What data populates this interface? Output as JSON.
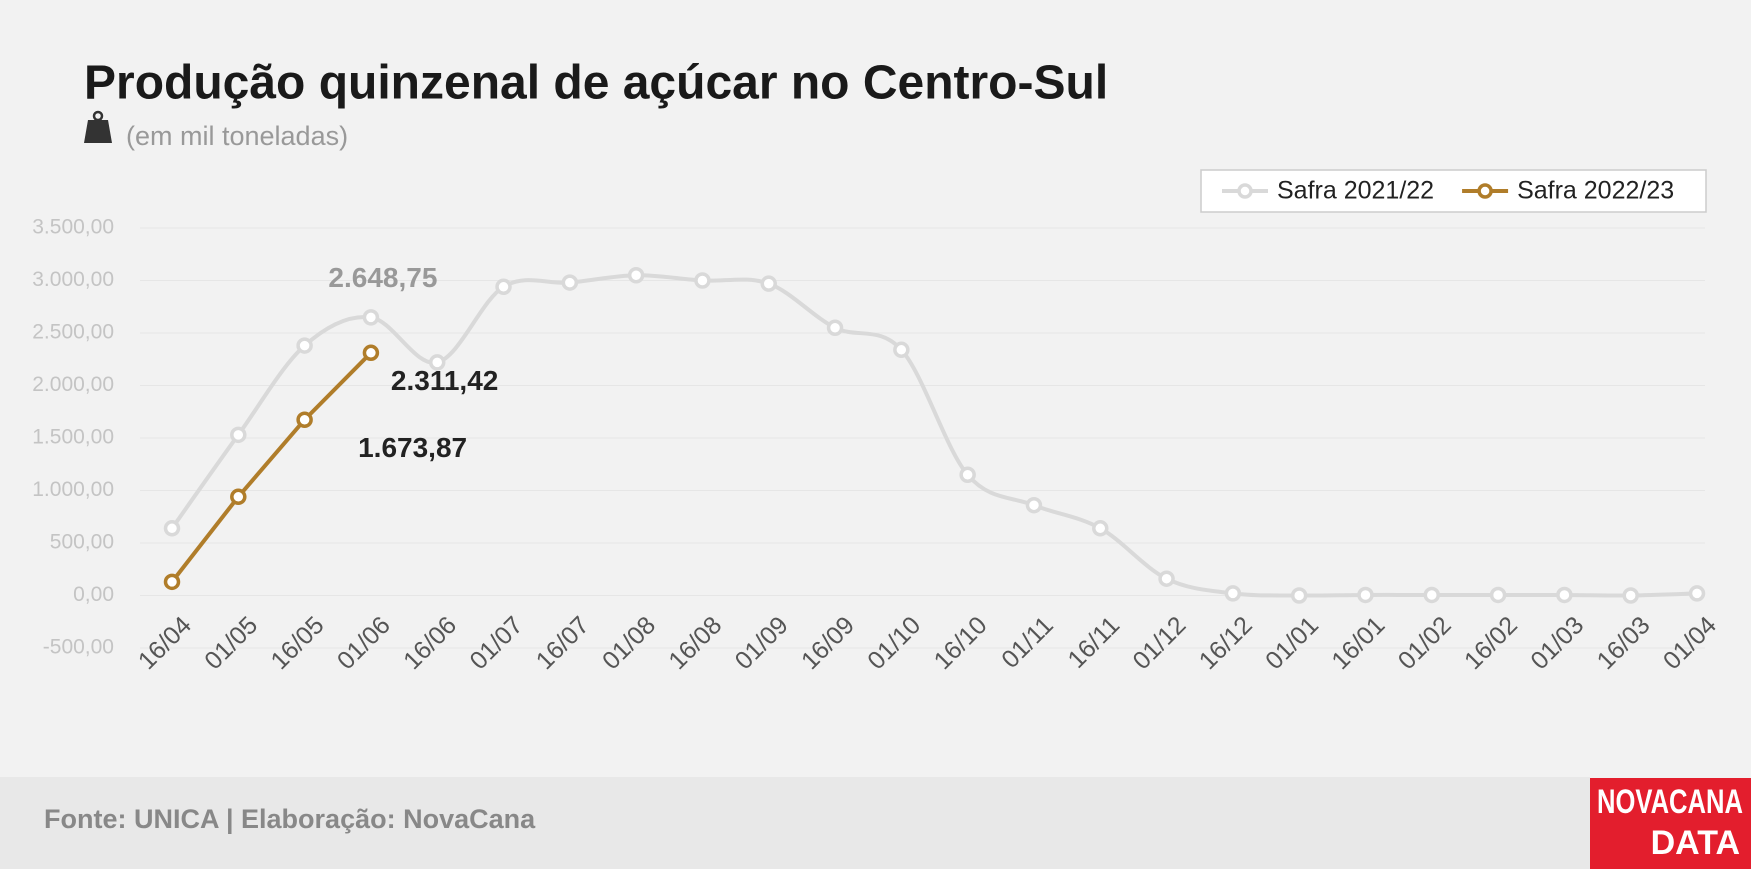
{
  "chart_data": {
    "type": "line",
    "title": "Produção quinzenal de açúcar no Centro-Sul",
    "subtitle": "(em mil toneladas)",
    "source": "Fonte: UNICA | Elaboração: NovaCana",
    "logo": [
      "NOVACANA",
      "DATA"
    ],
    "categories": [
      "16/04",
      "01/05",
      "16/05",
      "01/06",
      "16/06",
      "01/07",
      "16/07",
      "01/08",
      "16/08",
      "01/09",
      "16/09",
      "01/10",
      "16/10",
      "01/11",
      "16/11",
      "01/12",
      "16/12",
      "01/01",
      "16/01",
      "01/02",
      "16/02",
      "01/03",
      "16/03",
      "01/04"
    ],
    "series": [
      {
        "name": "Safra 2021/22",
        "color": "#d9d9d9",
        "smooth": true,
        "values": [
          640,
          1530,
          2380,
          2648.75,
          2220,
          2940,
          2980,
          3050,
          3000,
          2970,
          2550,
          2340,
          1150,
          860,
          640,
          160,
          20,
          0,
          5,
          5,
          5,
          5,
          0,
          20
        ],
        "value_labels": [
          null,
          null,
          null,
          "2.648,75",
          null,
          null,
          null,
          null,
          null,
          null,
          null,
          null,
          null,
          null,
          null,
          null,
          null,
          null,
          null,
          null,
          null,
          null,
          null,
          null
        ],
        "label_color": "#999999"
      },
      {
        "name": "Safra 2022/23",
        "color": "#b07d2a",
        "smooth": false,
        "values": [
          130,
          940,
          1673.87,
          2311.42,
          null,
          null,
          null,
          null,
          null,
          null,
          null,
          null,
          null,
          null,
          null,
          null,
          null,
          null,
          null,
          null,
          null,
          null,
          null,
          null
        ],
        "value_labels": [
          null,
          null,
          "1.673,87",
          "2.311,42",
          null,
          null,
          null,
          null,
          null,
          null,
          null,
          null,
          null,
          null,
          null,
          null,
          null,
          null,
          null,
          null,
          null,
          null,
          null,
          null
        ],
        "label_color": "#222222"
      }
    ],
    "ylim": [
      -500,
      3500
    ],
    "yticks": [
      {
        "value": -500,
        "label": "-500,00"
      },
      {
        "value": 0,
        "label": "0,00"
      },
      {
        "value": 500,
        "label": "500,00"
      },
      {
        "value": 1000,
        "label": "1.000,00"
      },
      {
        "value": 1500,
        "label": "1.500,00"
      },
      {
        "value": 2000,
        "label": "2.000,00"
      },
      {
        "value": 2500,
        "label": "2.500,00"
      },
      {
        "value": 3000,
        "label": "3.000,00"
      },
      {
        "value": 3500,
        "label": "3.500,00"
      }
    ],
    "grid": true,
    "legend": "top-right"
  }
}
